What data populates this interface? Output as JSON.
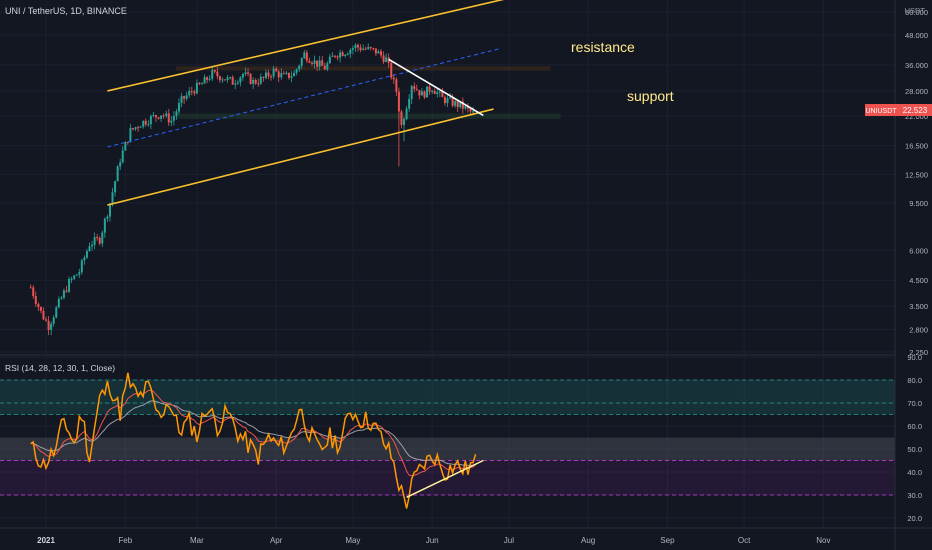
{
  "header": {
    "symbol_line": "UNI / TetherUS, 1D, BINANCE"
  },
  "price_axis": {
    "currency": "USDT",
    "ticks": [
      "60.000",
      "48.000",
      "36.000",
      "28.000",
      "22.000",
      "16.500",
      "12.500",
      "9.500",
      "6.000",
      "4.500",
      "3.500",
      "2.800",
      "2.250"
    ]
  },
  "last_price": {
    "symbol": "UNIUSDT",
    "value": "22.523",
    "color": "#ef5350"
  },
  "annotations": {
    "resistance": "resistance",
    "support": "support"
  },
  "rsi": {
    "label": "RSI (14, 28, 12, 30, 1, Close)",
    "ticks": [
      "90.0",
      "80.0",
      "70.0",
      "60.0",
      "50.0",
      "40.0",
      "30.0",
      "20.0"
    ]
  },
  "time_axis": [
    "2021",
    "Feb",
    "Mar",
    "Apr",
    "May",
    "Jun",
    "Jul",
    "Aug",
    "Sep",
    "Oct",
    "Nov"
  ],
  "chart_data": {
    "type": "candlestick",
    "price_scale": "log",
    "ylim": [
      2.25,
      60
    ],
    "close_path": [
      [
        "2020-12-26",
        4.2
      ],
      [
        "2020-12-30",
        3.3
      ],
      [
        "2021-01-02",
        2.9
      ],
      [
        "2021-01-06",
        3.6
      ],
      [
        "2021-01-10",
        4.4
      ],
      [
        "2021-01-14",
        4.9
      ],
      [
        "2021-01-18",
        6.4
      ],
      [
        "2021-01-22",
        6.7
      ],
      [
        "2021-01-26",
        9.5
      ],
      [
        "2021-01-30",
        14.5
      ],
      [
        "2021-02-03",
        19.0
      ],
      [
        "2021-02-07",
        20.5
      ],
      [
        "2021-02-11",
        21.5
      ],
      [
        "2021-02-15",
        22.5
      ],
      [
        "2021-02-19",
        21.0
      ],
      [
        "2021-02-23",
        25.5
      ],
      [
        "2021-02-27",
        28.0
      ],
      [
        "2021-03-03",
        30.0
      ],
      [
        "2021-03-07",
        33.0
      ],
      [
        "2021-03-11",
        32.0
      ],
      [
        "2021-03-15",
        30.5
      ],
      [
        "2021-03-19",
        33.0
      ],
      [
        "2021-03-23",
        30.5
      ],
      [
        "2021-03-27",
        31.5
      ],
      [
        "2021-03-31",
        34.0
      ],
      [
        "2021-04-04",
        32.0
      ],
      [
        "2021-04-08",
        33.0
      ],
      [
        "2021-04-12",
        40.0
      ],
      [
        "2021-04-16",
        37.0
      ],
      [
        "2021-04-20",
        35.0
      ],
      [
        "2021-04-24",
        40.0
      ],
      [
        "2021-04-28",
        41.0
      ],
      [
        "2021-05-02",
        43.0
      ],
      [
        "2021-05-06",
        42.0
      ],
      [
        "2021-05-10",
        41.0
      ],
      [
        "2021-05-14",
        38.0
      ],
      [
        "2021-05-18",
        28.0
      ],
      [
        "2021-05-20",
        20.0
      ],
      [
        "2021-05-24",
        30.0
      ],
      [
        "2021-05-28",
        27.0
      ],
      [
        "2021-06-01",
        29.0
      ],
      [
        "2021-06-05",
        26.0
      ],
      [
        "2021-06-09",
        25.0
      ],
      [
        "2021-06-13",
        24.0
      ],
      [
        "2021-06-17",
        22.5
      ]
    ],
    "drawings": [
      {
        "name": "resistance",
        "type": "horizontal-zone",
        "price": [
          34.3,
          35.3
        ],
        "color": "#f57c00"
      },
      {
        "name": "support",
        "type": "horizontal-zone",
        "price": [
          21.5,
          22.4
        ],
        "color": "#4caf50"
      },
      {
        "name": "channel-upper",
        "type": "trendline",
        "from": [
          "2021-01-25",
          28
        ],
        "to": [
          "2021-07-02",
          69
        ],
        "color": "#fbc02d"
      },
      {
        "name": "channel-lower",
        "type": "trendline",
        "from": [
          "2021-01-25",
          9.3
        ],
        "to": [
          "2021-06-25",
          23.5
        ],
        "color": "#fbc02d"
      },
      {
        "name": "channel-mid",
        "type": "dashed-trendline",
        "from": [
          "2021-01-25",
          16.3
        ],
        "to": [
          "2021-06-27",
          42
        ],
        "color": "#2962ff"
      },
      {
        "name": "descending-resistance",
        "type": "trendline",
        "from": [
          "2021-05-15",
          38
        ],
        "to": [
          "2021-06-21",
          22.1
        ],
        "color": "#ffffff"
      }
    ],
    "rsi": {
      "ylim": [
        20,
        90
      ],
      "bands": [
        80,
        70,
        65,
        55,
        45,
        35,
        30
      ],
      "series": [
        [
          "2020-12-26",
          51
        ],
        [
          "2020-12-31",
          43
        ],
        [
          "2021-01-05",
          50
        ],
        [
          "2021-01-08",
          63
        ],
        [
          "2021-01-12",
          52
        ],
        [
          "2021-01-15",
          66
        ],
        [
          "2021-01-18",
          46
        ],
        [
          "2021-01-22",
          72
        ],
        [
          "2021-01-26",
          78
        ],
        [
          "2021-01-30",
          66
        ],
        [
          "2021-02-02",
          80
        ],
        [
          "2021-02-06",
          72
        ],
        [
          "2021-02-10",
          77
        ],
        [
          "2021-02-14",
          64
        ],
        [
          "2021-02-18",
          71
        ],
        [
          "2021-02-22",
          58
        ],
        [
          "2021-02-26",
          62
        ],
        [
          "2021-03-01",
          56
        ],
        [
          "2021-03-05",
          69
        ],
        [
          "2021-03-09",
          60
        ],
        [
          "2021-03-13",
          66
        ],
        [
          "2021-03-17",
          57
        ],
        [
          "2021-03-21",
          52
        ],
        [
          "2021-03-25",
          47
        ],
        [
          "2021-03-29",
          55
        ],
        [
          "2021-04-02",
          51
        ],
        [
          "2021-04-06",
          53
        ],
        [
          "2021-04-10",
          68
        ],
        [
          "2021-04-14",
          57
        ],
        [
          "2021-04-18",
          49
        ],
        [
          "2021-04-22",
          55
        ],
        [
          "2021-04-26",
          52
        ],
        [
          "2021-04-30",
          67
        ],
        [
          "2021-05-04",
          63
        ],
        [
          "2021-05-08",
          62
        ],
        [
          "2021-05-12",
          55
        ],
        [
          "2021-05-16",
          47
        ],
        [
          "2021-05-20",
          31
        ],
        [
          "2021-05-22",
          27
        ],
        [
          "2021-05-25",
          37
        ],
        [
          "2021-05-29",
          44
        ],
        [
          "2021-06-02",
          47
        ],
        [
          "2021-06-06",
          40
        ],
        [
          "2021-06-10",
          43
        ],
        [
          "2021-06-14",
          41
        ],
        [
          "2021-06-18",
          44
        ]
      ],
      "divergence_line": {
        "from": [
          "2021-05-22",
          29
        ],
        "to": [
          "2021-06-21",
          45
        ]
      }
    },
    "x_range": [
      "2020-12-14",
      "2021-11-29"
    ]
  }
}
